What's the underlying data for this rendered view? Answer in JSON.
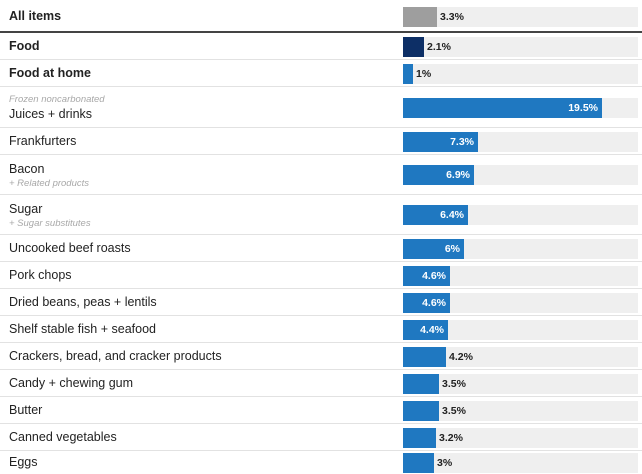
{
  "chart_data": {
    "type": "bar",
    "orientation": "horizontal",
    "value_suffix": "%",
    "xlim": [
      0,
      23
    ],
    "colors": {
      "all_items": "#9e9e9e",
      "food": "#0d2f66",
      "category": "#1f78c1",
      "track": "#efefef"
    },
    "rows": [
      {
        "label": "All items",
        "value": 3.3,
        "display": "3.3%",
        "bold": true,
        "kind": "all_items"
      },
      {
        "label": "Food",
        "value": 2.1,
        "display": "2.1%",
        "bold": true,
        "kind": "food"
      },
      {
        "label": "Food at home",
        "value": 1.0,
        "display": "1%",
        "bold": true,
        "kind": "category"
      },
      {
        "label": "Juices + drinks",
        "pre": "Frozen noncarbonated",
        "value": 19.5,
        "display": "19.5%",
        "kind": "category"
      },
      {
        "label": "Frankfurters",
        "value": 7.3,
        "display": "7.3%",
        "kind": "category"
      },
      {
        "label": "Bacon",
        "post": "+ Related products",
        "value": 6.9,
        "display": "6.9%",
        "kind": "category"
      },
      {
        "label": "Sugar",
        "post": "+ Sugar substitutes",
        "value": 6.4,
        "display": "6.4%",
        "kind": "category"
      },
      {
        "label": "Uncooked beef roasts",
        "value": 6.0,
        "display": "6%",
        "kind": "category"
      },
      {
        "label": "Pork chops",
        "value": 4.6,
        "display": "4.6%",
        "kind": "category"
      },
      {
        "label": "Dried beans, peas + lentils",
        "value": 4.6,
        "display": "4.6%",
        "kind": "category"
      },
      {
        "label": "Shelf stable fish + seafood",
        "value": 4.4,
        "display": "4.4%",
        "kind": "category"
      },
      {
        "label": "Crackers, bread, and cracker products",
        "value": 4.2,
        "display": "4.2%",
        "kind": "category"
      },
      {
        "label": "Candy + chewing gum",
        "value": 3.5,
        "display": "3.5%",
        "kind": "category"
      },
      {
        "label": "Butter",
        "value": 3.5,
        "display": "3.5%",
        "kind": "category"
      },
      {
        "label": "Canned vegetables",
        "value": 3.2,
        "display": "3.2%",
        "kind": "category"
      },
      {
        "label": "Eggs",
        "value": 3.0,
        "display": "3%",
        "kind": "category"
      }
    ]
  }
}
